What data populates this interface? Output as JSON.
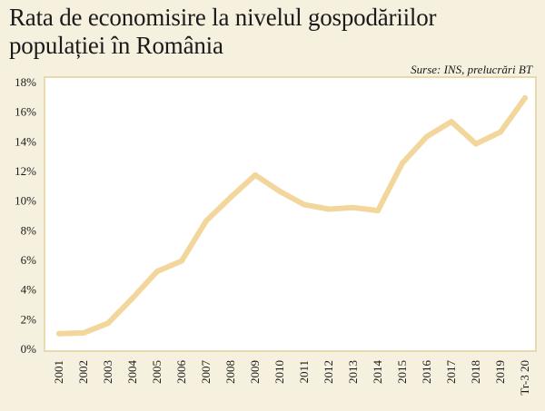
{
  "title_line1": "Rata de economisire la nivelul gospodăriilor",
  "title_line2": "populației în România",
  "source": "Surse: INS, prelucrări BT",
  "chart_data": {
    "type": "line",
    "title": "Rata de economisire la nivelul gospodăriilor populației în România",
    "xlabel": "",
    "ylabel": "",
    "categories": [
      "2001",
      "2002",
      "2003",
      "2004",
      "2005",
      "2006",
      "2007",
      "2008",
      "2009",
      "2010",
      "2011",
      "2012",
      "2013",
      "2014",
      "2015",
      "2016",
      "2017",
      "2018",
      "2019",
      "Tr-3 20"
    ],
    "series": [
      {
        "name": "Rata de economisire",
        "values": [
          1.0,
          1.05,
          1.7,
          3.4,
          5.2,
          5.9,
          8.6,
          10.2,
          11.7,
          10.6,
          9.7,
          9.4,
          9.5,
          9.3,
          12.5,
          14.3,
          15.3,
          13.8,
          14.6,
          16.9
        ]
      }
    ],
    "ylim": [
      0,
      18
    ],
    "yticks": [
      0,
      2,
      4,
      6,
      8,
      10,
      12,
      14,
      16,
      18
    ],
    "ytick_suffix": "%",
    "grid": false,
    "colors": {
      "line": "#f2d69b",
      "plot_bg": "#ffffff",
      "frame": "#e9d9b0",
      "page_bg": "#f6f0df"
    }
  }
}
